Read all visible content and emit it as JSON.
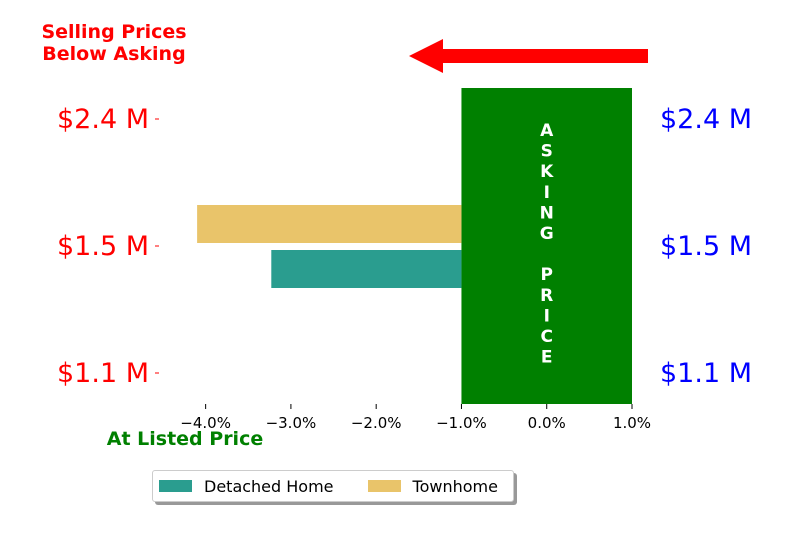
{
  "chart_data": {
    "type": "bar",
    "orientation": "horizontal",
    "title": "Selling Prices\nBelow Asking",
    "xlabel": "At Listed Price",
    "xlim": [
      -4.5,
      1.0
    ],
    "x_ticks": [
      -4.0,
      -3.0,
      -2.0,
      -1.0,
      0.0,
      1.0
    ],
    "x_tick_labels": [
      "−4.0%",
      "−3.0%",
      "−2.0%",
      "−1.0%",
      "0.0%",
      "1.0%"
    ],
    "categories": [
      "$1.1 M",
      "$1.5 M",
      "$2.4 M"
    ],
    "right_axis_labels": [
      "$1.1 M",
      "$1.5 M",
      "$2.4 M"
    ],
    "series": [
      {
        "name": "Detached Home",
        "color": "#2a9d8f",
        "values": [
          0,
          -3.23,
          0
        ]
      },
      {
        "name": "Townhome",
        "color": "#e9c46a",
        "values": [
          0,
          -4.1,
          0
        ]
      }
    ],
    "asking_band": {
      "x_range": [
        -1.0,
        1.0
      ],
      "text": "ASKING\nPRICE",
      "color": "#008000"
    },
    "arrow_color": "#ff0000",
    "title_color": "#ff0000",
    "left_label_color": "#ff0000",
    "right_label_color": "#0000ff",
    "xlabel_color": "#008000",
    "legend_position": "lower-center",
    "grid": false
  }
}
